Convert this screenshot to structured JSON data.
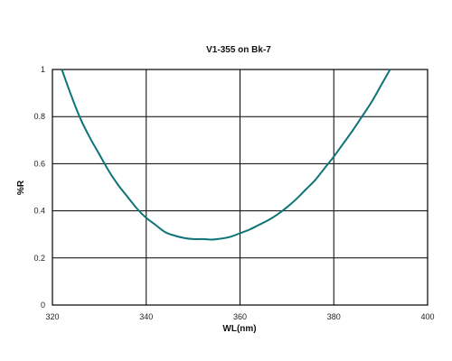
{
  "chart_data": {
    "type": "line",
    "title": "V1-355 on Bk-7",
    "xlabel": "WL(nm)",
    "ylabel": "%R",
    "xlim": [
      320,
      400
    ],
    "ylim": [
      0,
      1
    ],
    "x_ticks": [
      "320",
      "340",
      "360",
      "380",
      "400"
    ],
    "y_ticks": [
      "0",
      "0.2",
      "0.4",
      "0.6",
      "0.8",
      "1"
    ],
    "grid": true,
    "legend": "none",
    "line_color": "#0e7477",
    "series": [
      {
        "x": [
          322,
          324,
          326,
          328,
          330,
          332,
          334,
          336,
          338,
          340,
          342,
          344,
          346,
          348,
          350,
          352,
          354,
          356,
          358,
          360,
          362,
          364,
          366,
          368,
          370,
          372,
          374,
          376,
          378,
          380,
          382,
          384,
          386,
          388,
          390,
          392
        ],
        "values": [
          1.0,
          0.89,
          0.79,
          0.71,
          0.64,
          0.57,
          0.51,
          0.46,
          0.41,
          0.37,
          0.34,
          0.31,
          0.295,
          0.285,
          0.28,
          0.28,
          0.278,
          0.282,
          0.29,
          0.305,
          0.32,
          0.34,
          0.36,
          0.385,
          0.415,
          0.45,
          0.49,
          0.53,
          0.58,
          0.63,
          0.685,
          0.74,
          0.8,
          0.86,
          0.93,
          1.0
        ]
      }
    ]
  }
}
